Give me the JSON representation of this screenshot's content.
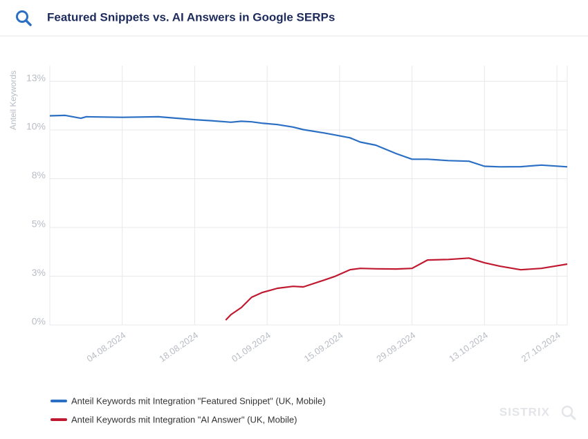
{
  "chart_data": {
    "type": "line",
    "title": "Featured Snippets vs. AI Answers in Google SERPs",
    "ylabel": "Anteil Keywords",
    "watermark": "SISTRIX",
    "x": [
      "21.07.2024",
      "24.07.2024",
      "27.07.2024",
      "28.07.2024",
      "04.08.2024",
      "11.08.2024",
      "18.08.2024",
      "21.08.2024",
      "24.08.2024",
      "25.08.2024",
      "27.08.2024",
      "29.08.2024",
      "31.08.2024",
      "03.09.2024",
      "06.09.2024",
      "08.09.2024",
      "12.09.2024",
      "14.09.2024",
      "17.09.2024",
      "19.09.2024",
      "22.09.2024",
      "26.09.2024",
      "29.09.2024",
      "02.10.2024",
      "06.10.2024",
      "10.10.2024",
      "13.10.2024",
      "16.10.2024",
      "20.10.2024",
      "24.10.2024",
      "29.10.2024"
    ],
    "xlim": [
      "21.07.2024",
      "29.10.2024"
    ],
    "xticks": [
      "04.08.2024",
      "18.08.2024",
      "01.09.2024",
      "15.09.2024",
      "29.09.2024",
      "13.10.2024",
      "27.10.2024"
    ],
    "ylim": [
      0,
      13.3
    ],
    "yticks": [
      {
        "value": 0,
        "label": "0%"
      },
      {
        "value": 2.5,
        "label": "3%"
      },
      {
        "value": 5,
        "label": "5%"
      },
      {
        "value": 7.5,
        "label": "8%"
      },
      {
        "value": 10,
        "label": "10%"
      },
      {
        "value": 12.5,
        "label": "13%"
      }
    ],
    "grid": true,
    "legend": "bottom-left",
    "series": [
      {
        "name": "Anteil Keywords mit Integration \"Featured Snippet\" (UK, Mobile)",
        "color": "#2a6fc4",
        "values": [
          10.73,
          10.75,
          10.6,
          10.68,
          10.65,
          10.68,
          10.53,
          10.48,
          10.42,
          10.4,
          10.45,
          10.42,
          10.35,
          10.28,
          10.15,
          10.02,
          9.85,
          9.75,
          9.6,
          9.38,
          9.22,
          8.78,
          8.5,
          8.5,
          8.43,
          8.4,
          8.14,
          8.11,
          8.12,
          8.2,
          8.11
        ]
      },
      {
        "name": "Anteil Keywords mit Integration \"AI Answer\" (UK, Mobile)",
        "color": "#c0182f",
        "values": [
          null,
          null,
          null,
          null,
          null,
          null,
          null,
          null,
          0.25,
          0.53,
          0.89,
          1.42,
          1.66,
          1.88,
          1.98,
          1.95,
          2.3,
          2.48,
          2.83,
          2.9,
          2.88,
          2.87,
          2.9,
          3.33,
          3.36,
          3.43,
          3.19,
          3.01,
          2.83,
          2.9,
          3.12
        ]
      }
    ]
  }
}
